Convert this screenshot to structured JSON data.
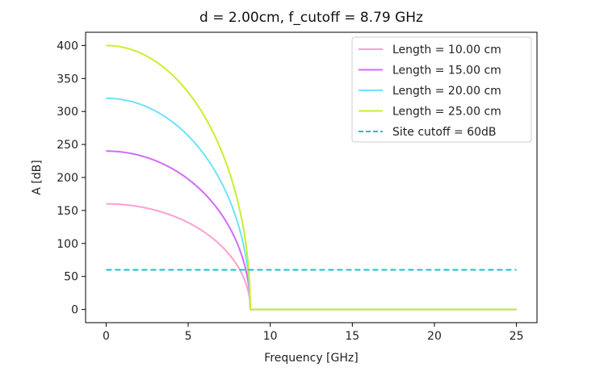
{
  "chart_data": {
    "type": "line",
    "title": "d = 2.00cm, f_cutoff = 8.79 GHz",
    "xlabel": "Frequency [GHz]",
    "ylabel": "A [dB]",
    "xlim": [
      -1.25,
      26.25
    ],
    "ylim": [
      -20,
      420
    ],
    "xticks": [
      0,
      5,
      10,
      15,
      20,
      25
    ],
    "yticks": [
      0,
      50,
      100,
      150,
      200,
      250,
      300,
      350,
      400
    ],
    "cutoff_ghz": 8.79,
    "grid": false,
    "legend_position": "top-right",
    "series": [
      {
        "name": "Length = 10.00 cm",
        "color": "#ff9fd2",
        "style": "solid",
        "x": [
          0,
          1,
          2,
          3,
          4,
          5,
          6,
          7,
          8,
          8.5,
          8.79,
          8.8,
          10,
          15,
          20,
          25
        ],
        "y": [
          160.0,
          158.9,
          155.8,
          150.5,
          142.5,
          131.5,
          116.9,
          96.7,
          66.2,
          40.7,
          0,
          0,
          0,
          0,
          0,
          0
        ]
      },
      {
        "name": "Length = 15.00 cm",
        "color": "#d16cf7",
        "style": "solid",
        "x": [
          0,
          1,
          2,
          3,
          4,
          5,
          6,
          7,
          8,
          8.5,
          8.79,
          8.8,
          10,
          15,
          20,
          25
        ],
        "y": [
          240.0,
          238.4,
          233.7,
          225.6,
          213.7,
          197.4,
          175.4,
          145.1,
          99.4,
          61.1,
          0,
          0,
          0,
          0,
          0,
          0
        ]
      },
      {
        "name": "Length = 20.00 cm",
        "color": "#6ee3f7",
        "style": "solid",
        "x": [
          0,
          1,
          2,
          3,
          4,
          5,
          6,
          7,
          8,
          8.5,
          8.79,
          8.8,
          10,
          15,
          20,
          25
        ],
        "y": [
          320.0,
          317.9,
          311.6,
          300.8,
          284.9,
          263.2,
          233.9,
          193.5,
          132.5,
          81.5,
          0,
          0,
          0,
          0,
          0,
          0
        ]
      },
      {
        "name": "Length = 25.00 cm",
        "color": "#c7f02c",
        "style": "solid",
        "x": [
          0,
          1,
          2,
          3,
          4,
          5,
          6,
          7,
          8,
          8.5,
          8.79,
          8.8,
          10,
          15,
          20,
          25
        ],
        "y": [
          400.0,
          397.4,
          389.5,
          376.0,
          356.2,
          329.0,
          292.3,
          241.9,
          165.6,
          101.9,
          0,
          0,
          0,
          0,
          0,
          0
        ]
      },
      {
        "name": "Site cutoff = 60dB",
        "color": "#23bccf",
        "style": "dashed",
        "x": [
          0,
          25
        ],
        "y": [
          60,
          60
        ]
      }
    ]
  }
}
